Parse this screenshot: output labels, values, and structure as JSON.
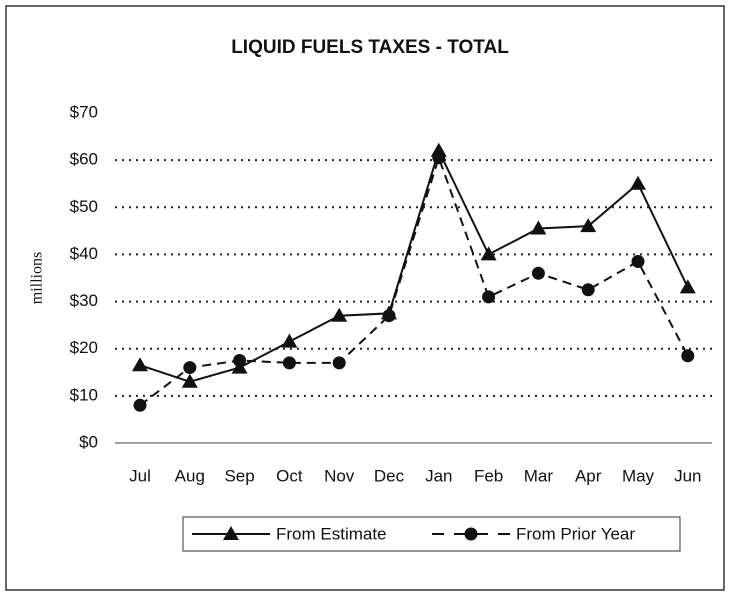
{
  "chart_data": {
    "type": "line",
    "title": "LIQUID FUELS TAXES - TOTAL",
    "y_label": "millions",
    "categories": [
      "Jul",
      "Aug",
      "Sep",
      "Oct",
      "Nov",
      "Dec",
      "Jan",
      "Feb",
      "Mar",
      "Apr",
      "May",
      "Jun"
    ],
    "series": [
      {
        "name": "From Estimate",
        "color": "#111111",
        "marker": "triangle",
        "dashed": false,
        "values": [
          16.5,
          13,
          16,
          21.5,
          27,
          27.5,
          62,
          40,
          45.5,
          46,
          55,
          33
        ]
      },
      {
        "name": "From Prior Year",
        "color": "#111111",
        "marker": "circle",
        "dashed": true,
        "values": [
          8,
          16,
          17.5,
          17,
          17,
          27,
          60.5,
          31,
          36,
          32.5,
          38.5,
          18.5
        ]
      }
    ],
    "ylim": [
      0,
      70
    ],
    "yticks": [
      {
        "value": 0,
        "label": "$0"
      },
      {
        "value": 10,
        "label": "$10"
      },
      {
        "value": 20,
        "label": "$20"
      },
      {
        "value": 30,
        "label": "$30"
      },
      {
        "value": 40,
        "label": "$40"
      },
      {
        "value": 50,
        "label": "$50"
      },
      {
        "value": 60,
        "label": "$60"
      },
      {
        "value": 70,
        "label": "$70"
      }
    ],
    "grid": true,
    "legend": "bottom"
  }
}
